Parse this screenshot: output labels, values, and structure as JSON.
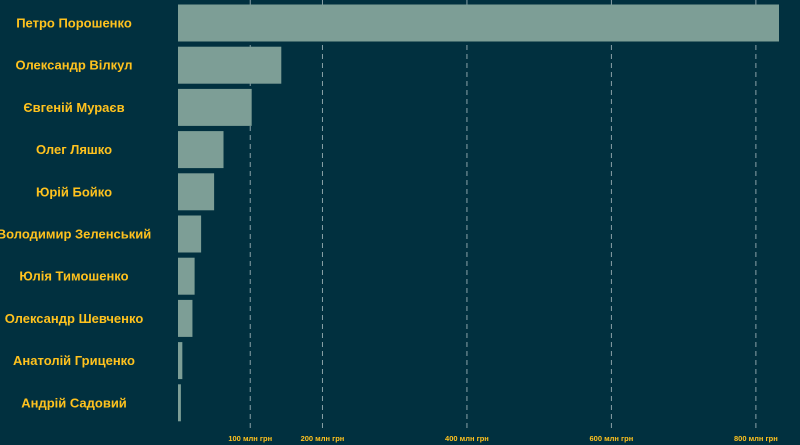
{
  "colors": {
    "background": "#01303f",
    "bar": "#7d9e96",
    "label": "#ffc21e",
    "grid": "#8aa1a8"
  },
  "chart_data": {
    "type": "bar",
    "orientation": "horizontal",
    "categories": [
      "Петро Порошенко",
      "Олександр Вілкул",
      "Євгеній Мураєв",
      "Олег Ляшко",
      "Юрій Бойко",
      "Володимир Зеленський",
      "Юлія Тимошенко",
      "Олександр Шевченко",
      "Анатолій Гриценко",
      "Андрій Садовий"
    ],
    "values": [
      832,
      143,
      102,
      63,
      50,
      32,
      23,
      20,
      6,
      4
    ],
    "xlim": [
      0,
      850
    ],
    "xticks": [
      {
        "value": 100,
        "label": "100 млн грн"
      },
      {
        "value": 200,
        "label": "200 млн грн"
      },
      {
        "value": 400,
        "label": "400 млн грн"
      },
      {
        "value": 600,
        "label": "600 млн грн"
      },
      {
        "value": 800,
        "label": "800 млн грн"
      }
    ],
    "grid": true,
    "title": "",
    "xlabel": "",
    "ylabel": ""
  }
}
